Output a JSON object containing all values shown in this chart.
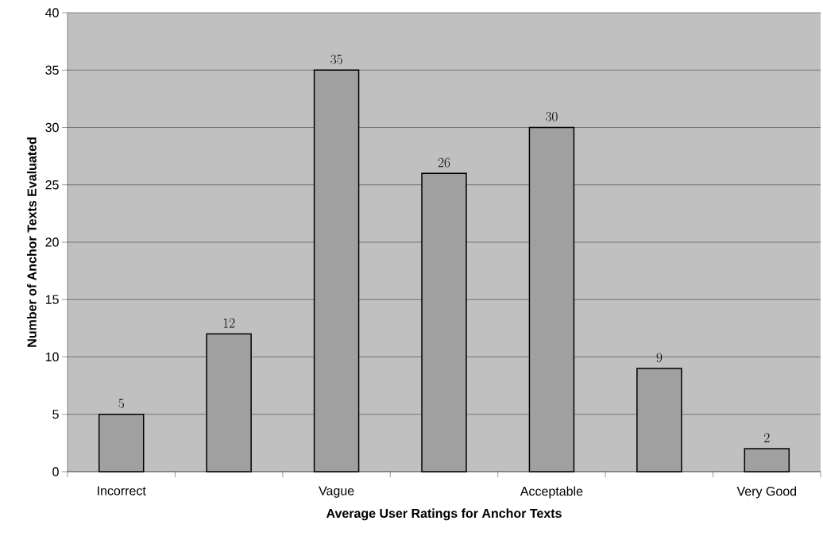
{
  "chart_data": {
    "type": "bar",
    "xlabel": "Average User Ratings for Anchor Texts",
    "ylabel": "Number of Anchor Texts Evaluated",
    "categories": [
      "Incorrect",
      null,
      "Vague",
      null,
      "Acceptable",
      null,
      "Very Good"
    ],
    "values": [
      5,
      12,
      35,
      26,
      30,
      9,
      2
    ],
    "color": "#a0a0a0",
    "ylim": [
      0,
      40
    ],
    "yticks": [
      0,
      5,
      10,
      15,
      20,
      25,
      30,
      35,
      40
    ],
    "grid": "y",
    "data_labels": true
  }
}
